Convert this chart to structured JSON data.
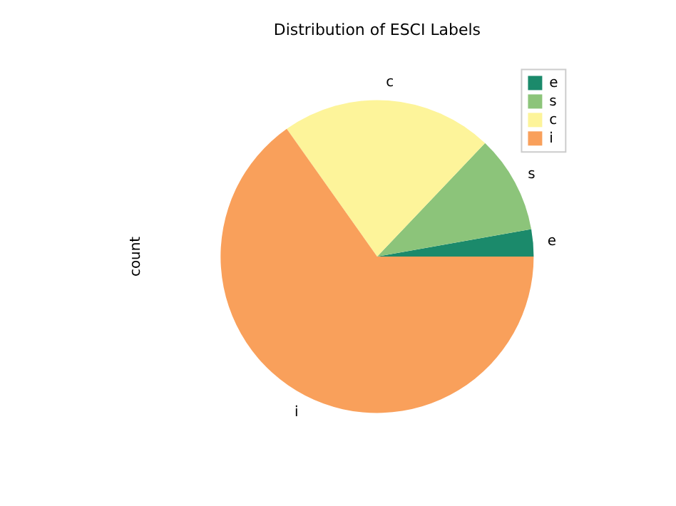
{
  "chart_data": {
    "type": "pie",
    "title": "Distribution of ESCI Labels",
    "ylabel": "count",
    "categories": [
      "e",
      "s",
      "c",
      "i"
    ],
    "values": [
      2.8,
      10.1,
      21.9,
      65.2
    ],
    "colors": [
      "#1b8a6b",
      "#8cc47a",
      "#fdf49a",
      "#f9a05b"
    ],
    "legend": "top right"
  }
}
